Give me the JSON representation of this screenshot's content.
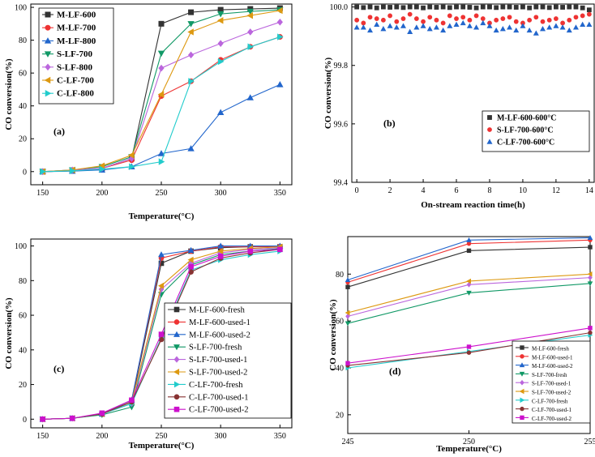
{
  "chart_data": [
    {
      "panel": "(a)",
      "type": "line",
      "xlabel": "Temperature(°C)",
      "ylabel": "CO conversion(%)",
      "xlim": [
        140,
        360
      ],
      "ylim": [
        -8,
        102
      ],
      "xticks": [
        150,
        200,
        250,
        300,
        350
      ],
      "yticks": [
        0,
        20,
        40,
        60,
        80,
        100
      ],
      "x": [
        150,
        175,
        200,
        225,
        250,
        275,
        300,
        325,
        350
      ],
      "series": [
        {
          "name": "M-LF-600",
          "color": "#333333",
          "marker": "square",
          "values": [
            0,
            0.5,
            2,
            8,
            90,
            97,
            98.5,
            99,
            99.5
          ]
        },
        {
          "name": "M-LF-700",
          "color": "#ee3333",
          "marker": "circle",
          "values": [
            0,
            0.5,
            2,
            7,
            46,
            55,
            68,
            76,
            82
          ]
        },
        {
          "name": "M-LF-800",
          "color": "#2266cc",
          "marker": "triangle-up",
          "values": [
            0,
            0.3,
            1,
            3,
            11,
            14,
            36,
            45,
            53
          ]
        },
        {
          "name": "S-LF-700",
          "color": "#119966",
          "marker": "triangle-down",
          "values": [
            0,
            1,
            3,
            9,
            72,
            90,
            96,
            97.5,
            98.5
          ]
        },
        {
          "name": "S-LF-800",
          "color": "#bb66dd",
          "marker": "diamond",
          "values": [
            0,
            1,
            2,
            8,
            63,
            71,
            78,
            85,
            91
          ]
        },
        {
          "name": "C-LF-700",
          "color": "#dd9911",
          "marker": "triangle-left",
          "values": [
            0,
            1,
            3.5,
            10,
            47,
            85,
            92,
            95,
            98
          ]
        },
        {
          "name": "C-LF-800",
          "color": "#22cccc",
          "marker": "triangle-right",
          "values": [
            0,
            0.5,
            1.5,
            3,
            6,
            55,
            67,
            76,
            82
          ]
        }
      ]
    },
    {
      "panel": "(b)",
      "type": "scatter",
      "xlabel": "On-stream reaction time(h)",
      "ylabel": "CO conversion(%)",
      "xlim": [
        -0.3,
        14.3
      ],
      "ylim": [
        99.4,
        100.01
      ],
      "xticks": [
        0,
        2,
        4,
        6,
        8,
        10,
        12,
        14
      ],
      "yticks": [
        99.4,
        99.6,
        99.8,
        100.0
      ],
      "ytick_labels": [
        "99.4",
        "99.6",
        "99.8",
        "100.0"
      ],
      "series": [
        {
          "name": "M-LF-600-600°C",
          "color": "#333333",
          "marker": "square",
          "x": [
            0,
            0.4,
            0.8,
            1.2,
            1.6,
            2.0,
            2.4,
            2.8,
            3.2,
            3.6,
            4.0,
            4.4,
            4.8,
            5.2,
            5.6,
            6.0,
            6.4,
            6.8,
            7.2,
            7.6,
            8.0,
            8.4,
            8.8,
            9.2,
            9.6,
            10.0,
            10.4,
            10.8,
            11.2,
            11.6,
            12.0,
            12.4,
            12.8,
            13.2,
            13.6,
            14.0
          ],
          "values": [
            100.0,
            99.998,
            100.0,
            99.997,
            100.0,
            99.999,
            100.0,
            99.998,
            100.0,
            100.0,
            99.997,
            100.0,
            99.999,
            100.0,
            99.998,
            100.0,
            100.0,
            99.999,
            99.997,
            100.0,
            100.0,
            99.998,
            100.0,
            100.0,
            99.999,
            100.0,
            99.997,
            100.0,
            100.0,
            99.998,
            100.0,
            99.999,
            100.0,
            100.0,
            99.997,
            99.99
          ]
        },
        {
          "name": "S-LF-700-600°C",
          "color": "#ee3333",
          "marker": "circle",
          "x": [
            0,
            0.4,
            0.8,
            1.2,
            1.6,
            2.0,
            2.4,
            2.8,
            3.2,
            3.6,
            4.0,
            4.4,
            4.8,
            5.2,
            5.6,
            6.0,
            6.4,
            6.8,
            7.2,
            7.6,
            8.0,
            8.4,
            8.8,
            9.2,
            9.6,
            10.0,
            10.4,
            10.8,
            11.2,
            11.6,
            12.0,
            12.4,
            12.8,
            13.2,
            13.6,
            14.0
          ],
          "values": [
            99.955,
            99.945,
            99.965,
            99.96,
            99.955,
            99.97,
            99.95,
            99.96,
            99.975,
            99.96,
            99.95,
            99.965,
            99.955,
            99.945,
            99.97,
            99.96,
            99.965,
            99.955,
            99.97,
            99.96,
            99.945,
            99.955,
            99.96,
            99.965,
            99.95,
            99.945,
            99.955,
            99.965,
            99.95,
            99.955,
            99.96,
            99.945,
            99.955,
            99.965,
            99.97,
            99.975
          ]
        },
        {
          "name": "C-LF-700-600°C",
          "color": "#2266cc",
          "marker": "triangle-up",
          "x": [
            0,
            0.4,
            0.8,
            1.2,
            1.6,
            2.0,
            2.4,
            2.8,
            3.2,
            3.6,
            4.0,
            4.4,
            4.8,
            5.2,
            5.6,
            6.0,
            6.4,
            6.8,
            7.2,
            7.6,
            8.0,
            8.4,
            8.8,
            9.2,
            9.6,
            10.0,
            10.4,
            10.8,
            11.2,
            11.6,
            12.0,
            12.4,
            12.8,
            13.2,
            13.6,
            14.0
          ],
          "values": [
            99.93,
            99.93,
            99.92,
            99.94,
            99.925,
            99.935,
            99.93,
            99.935,
            99.915,
            99.93,
            99.935,
            99.925,
            99.93,
            99.92,
            99.935,
            99.94,
            99.945,
            99.935,
            99.93,
            99.945,
            99.935,
            99.92,
            99.925,
            99.93,
            99.92,
            99.935,
            99.92,
            99.91,
            99.925,
            99.93,
            99.935,
            99.93,
            99.92,
            99.93,
            99.94,
            99.94
          ]
        }
      ]
    },
    {
      "panel": "(c)",
      "type": "line",
      "xlabel": "Temperature(°C)",
      "ylabel": "CO conversion(%)",
      "xlim": [
        140,
        360
      ],
      "ylim": [
        -5,
        104
      ],
      "xticks": [
        150,
        200,
        250,
        300,
        350
      ],
      "yticks": [
        0,
        20,
        40,
        60,
        80,
        100
      ],
      "x": [
        150,
        175,
        200,
        225,
        250,
        275,
        300,
        325,
        350
      ],
      "series": [
        {
          "name": "M-LF-600-fresh",
          "color": "#333333",
          "marker": "square",
          "values": [
            0,
            0.5,
            3,
            10,
            90,
            97,
            99,
            99.5,
            99.5
          ]
        },
        {
          "name": "M-LF-600-used-1",
          "color": "#ee3333",
          "marker": "circle",
          "values": [
            0,
            0.5,
            3,
            11,
            93,
            97,
            99.5,
            99.5,
            99.7
          ]
        },
        {
          "name": "M-LF-600-used-2",
          "color": "#2266cc",
          "marker": "triangle-up",
          "values": [
            0,
            0.5,
            3,
            11,
            95,
            97.5,
            100,
            100,
            100
          ]
        },
        {
          "name": "S-LF-700-fresh",
          "color": "#119966",
          "marker": "triangle-down",
          "values": [
            0,
            0.5,
            2.5,
            7,
            72,
            89,
            95,
            97,
            98.5
          ]
        },
        {
          "name": "S-LF-700-used-1",
          "color": "#bb66dd",
          "marker": "diamond",
          "values": [
            0,
            0.5,
            3,
            9,
            75,
            90,
            96,
            98,
            99
          ]
        },
        {
          "name": "S-LF-700-used-2",
          "color": "#dd9911",
          "marker": "triangle-left",
          "values": [
            0,
            0.5,
            3,
            10,
            77,
            92,
            97,
            98.5,
            99.5
          ]
        },
        {
          "name": "C-LF-700-fresh",
          "color": "#22cccc",
          "marker": "triangle-right",
          "values": [
            0,
            0.5,
            3,
            9,
            47,
            86,
            92,
            95,
            97
          ]
        },
        {
          "name": "C-LF-700-used-1",
          "color": "#883333",
          "marker": "circle",
          "values": [
            0,
            0.5,
            3,
            10,
            46,
            85,
            93,
            96,
            98
          ]
        },
        {
          "name": "C-LF-700-used-2",
          "color": "#cc11cc",
          "marker": "square",
          "values": [
            0,
            0.5,
            3.5,
            11,
            49,
            88,
            94,
            97,
            98
          ]
        }
      ]
    },
    {
      "panel": "(d)",
      "type": "line",
      "xlabel": "Temperature(°C)",
      "ylabel": "CO conversion(%)",
      "xlim": [
        245,
        255
      ],
      "ylim": [
        12,
        96
      ],
      "xticks": [
        245,
        250,
        255
      ],
      "yticks": [
        20,
        40,
        60,
        80
      ],
      "x": [
        245,
        250,
        255
      ],
      "series": [
        {
          "name": "M-LF-600-fresh",
          "color": "#333333",
          "marker": "square",
          "values": [
            74.5,
            90,
            91.5
          ]
        },
        {
          "name": "M-LF-600-used-1",
          "color": "#ee3333",
          "marker": "circle",
          "values": [
            76.5,
            93,
            94.5
          ]
        },
        {
          "name": "M-LF-600-used-2",
          "color": "#2266cc",
          "marker": "triangle-up",
          "values": [
            77.5,
            94.5,
            95.5
          ]
        },
        {
          "name": "S-LF-700-fresh",
          "color": "#119966",
          "marker": "triangle-down",
          "values": [
            59,
            72,
            76
          ]
        },
        {
          "name": "S-LF-700-used-1",
          "color": "#bb66dd",
          "marker": "diamond",
          "values": [
            62,
            75.5,
            78.5
          ]
        },
        {
          "name": "S-LF-700-used-2",
          "color": "#dd9911",
          "marker": "triangle-left",
          "values": [
            63.5,
            77,
            80
          ]
        },
        {
          "name": "C-LF-700-fresh",
          "color": "#22cccc",
          "marker": "triangle-right",
          "values": [
            40,
            47,
            54
          ]
        },
        {
          "name": "C-LF-700-used-1",
          "color": "#883333",
          "marker": "circle",
          "values": [
            41,
            46.5,
            55
          ]
        },
        {
          "name": "C-LF-700-used-2",
          "color": "#cc11cc",
          "marker": "square",
          "values": [
            42,
            49,
            57
          ]
        }
      ]
    }
  ]
}
